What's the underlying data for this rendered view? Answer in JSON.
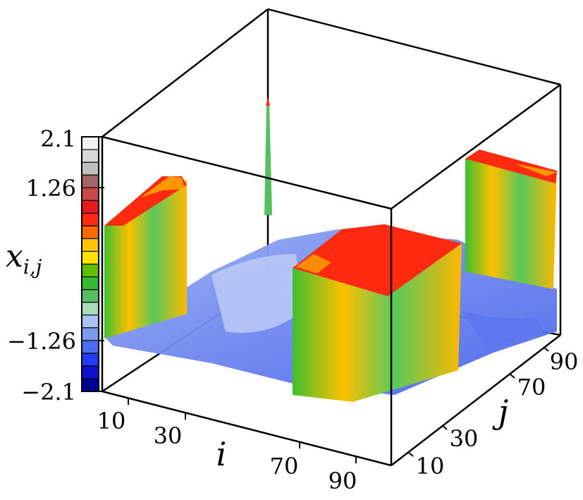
{
  "chart_data": {
    "type": "surface3d",
    "title": "",
    "xlabel": "i",
    "ylabel": "j",
    "zlabel": {
      "base": "x",
      "sub": "i,j"
    },
    "x_ticks": [
      "10",
      "30",
      "70",
      "90"
    ],
    "y_ticks": [
      "10",
      "30",
      "70",
      "90"
    ],
    "colorbar": {
      "ticks": [
        "2.1",
        "1.26",
        "−1.26",
        "−2.1"
      ],
      "range": [
        -2.1,
        2.1
      ],
      "colors": [
        "#f2f2f2",
        "#d8d8d8",
        "#bfbfbf",
        "#a36464",
        "#c84848",
        "#e41a1c",
        "#ff2a10",
        "#ff6a00",
        "#ffc400",
        "#ffe100",
        "#5fc000",
        "#38b834",
        "#56c060",
        "#a8dcb8",
        "#a8c4f0",
        "#7a9cf0",
        "#4a6ef0",
        "#1f3cf0",
        "#1010d0",
        "#000090"
      ]
    },
    "surface": {
      "base_level": -1.5,
      "plateaus": [
        {
          "name": "left-plateau",
          "level": 1.0
        },
        {
          "name": "center-plateau",
          "level": 1.0
        },
        {
          "name": "back-right-plateau",
          "level": 1.0
        },
        {
          "name": "spike",
          "level": 2.1
        }
      ]
    }
  }
}
